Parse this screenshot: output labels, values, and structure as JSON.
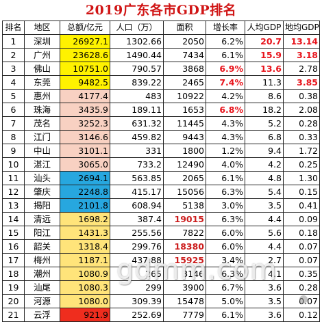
{
  "title": "2019广东各市GDP排名",
  "headers": [
    "排名",
    "地区",
    "总额/亿元",
    "人口（万）",
    "面积",
    "增长率",
    "人均GDP",
    "地均GDP"
  ],
  "rows": [
    {
      "rank": "1",
      "region": "深圳",
      "gdp": "26927.1",
      "pop": "1302.66",
      "area": "2050",
      "growth": "6.2%",
      "per": "20.7",
      "land": "13.14",
      "gdp_bg": "yellow",
      "per_red": true,
      "land_red": true
    },
    {
      "rank": "2",
      "region": "广州",
      "gdp": "23628.6",
      "pop": "1490.44",
      "area": "7434",
      "growth": "6.1%",
      "per": "15.9",
      "land": "3.18",
      "gdp_bg": "yellow",
      "per_red": true,
      "land_red": true
    },
    {
      "rank": "3",
      "region": "佛山",
      "gdp": "10751.0",
      "pop": "790.57",
      "area": "3868",
      "growth": "6.9%",
      "per": "13.6",
      "land": "2.78",
      "gdp_bg": "yellow",
      "growth_red": true,
      "per_red": true
    },
    {
      "rank": "4",
      "region": "东莞",
      "gdp": "9482.5",
      "pop": "839.22",
      "area": "2465",
      "growth": "7.4%",
      "per": "11.3",
      "land": "3.85",
      "gdp_bg": "yellow",
      "growth_red": true,
      "land_red": true
    },
    {
      "rank": "5",
      "region": "惠州",
      "gdp": "4177.4",
      "pop": "483",
      "area": "10922",
      "growth": "4.2%",
      "per": "8.6",
      "land": "0.38",
      "gdp_bg": "peach"
    },
    {
      "rank": "6",
      "region": "珠海",
      "gdp": "3435.9",
      "pop": "189.11",
      "area": "1653",
      "growth": "6.8%",
      "per": "18.2",
      "land": "2.08",
      "gdp_bg": "peach",
      "growth_red": true
    },
    {
      "rank": "7",
      "region": "茂名",
      "gdp": "3252.3",
      "pop": "631.32",
      "area": "11445",
      "growth": "4.3%",
      "per": "5.2",
      "land": "0.28",
      "gdp_bg": "peach"
    },
    {
      "rank": "8",
      "region": "江门",
      "gdp": "3146.6",
      "pop": "459.82",
      "area": "9443",
      "growth": "4.3%",
      "per": "6.8",
      "land": "0.33",
      "gdp_bg": "peach"
    },
    {
      "rank": "9",
      "region": "中山",
      "gdp": "3101.1",
      "pop": "331",
      "area": "1800",
      "growth": "1.2%",
      "per": "9.4",
      "land": "1.72",
      "gdp_bg": "peach"
    },
    {
      "rank": "10",
      "region": "湛江",
      "gdp": "3065.0",
      "pop": "733.2",
      "area": "12490",
      "growth": "4.0%",
      "per": "4.2",
      "land": "0.25",
      "gdp_bg": "peach"
    },
    {
      "rank": "11",
      "region": "汕头",
      "gdp": "2694.1",
      "pop": "563.85",
      "area": "2065",
      "growth": "6.1%",
      "per": "4.8",
      "land": "1.30",
      "gdp_bg": "blue"
    },
    {
      "rank": "12",
      "region": "肇庆",
      "gdp": "2248.8",
      "pop": "415.17",
      "area": "15056",
      "growth": "6.3%",
      "per": "5.4",
      "land": "0.15",
      "gdp_bg": "blue"
    },
    {
      "rank": "13",
      "region": "揭阳",
      "gdp": "2101.8",
      "pop": "608.94",
      "area": "5138",
      "growth": "3.0%",
      "per": "3.5",
      "land": "0.41",
      "gdp_bg": "blue"
    },
    {
      "rank": "14",
      "region": "清远",
      "gdp": "1698.2",
      "pop": "387.4",
      "area": "19015",
      "growth": "6.3%",
      "per": "4.4",
      "land": "0.09",
      "gdp_bg": "lightyellow",
      "area_red": true
    },
    {
      "rank": "15",
      "region": "阳江",
      "gdp": "1431.3",
      "pop": "255.56",
      "area": "7822",
      "growth": "6.0%",
      "per": "5.6",
      "land": "0.18",
      "gdp_bg": "lightyellow"
    },
    {
      "rank": "16",
      "region": "韶关",
      "gdp": "1318.4",
      "pop": "299.76",
      "area": "18380",
      "growth": "6.0%",
      "per": "4.4",
      "land": "0.07",
      "gdp_bg": "lightyellow",
      "area_red": true
    },
    {
      "rank": "17",
      "region": "梅州",
      "gdp": "1187.1",
      "pop": "437.88",
      "area": "15925",
      "growth": "3.4%",
      "per": "2.7",
      "land": "0.07",
      "gdp_bg": "lightyellow",
      "area_red": true
    },
    {
      "rank": "18",
      "region": "潮州",
      "gdp": "1080.9",
      "pop": "265",
      "area": "3146",
      "growth": "6.3%",
      "per": "4.1",
      "land": "0.35",
      "gdp_bg": "lightyellow"
    },
    {
      "rank": "19",
      "region": "汕尾",
      "gdp": "1080.3",
      "pop": "299",
      "area": "3900",
      "growth": "6.7%",
      "per": "3.6",
      "land": "0.28",
      "gdp_bg": "lightyellow"
    },
    {
      "rank": "20",
      "region": "河源",
      "gdp": "1080.0",
      "pop": "309.39",
      "area": "15478",
      "growth": "5.0%",
      "per": "3.5",
      "land": "0.07",
      "gdp_bg": "lightyellow"
    },
    {
      "rank": "21",
      "region": "云浮",
      "gdp": "921.9",
      "pop": "252.69",
      "area": "7779",
      "growth": "6.1%",
      "per": "3.6",
      "land": "0.12",
      "gdp_bg": "red"
    }
  ],
  "watermark": "gdmm.com"
}
